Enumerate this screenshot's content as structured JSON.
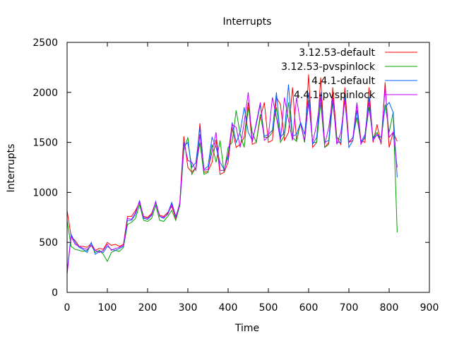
{
  "chart_data": {
    "type": "line",
    "title": "Interrupts",
    "xlabel": "Time",
    "ylabel": "Interrupts",
    "xlim": [
      0,
      900
    ],
    "ylim": [
      0,
      2500
    ],
    "xticks": [
      0,
      100,
      200,
      300,
      400,
      500,
      600,
      700,
      800,
      900
    ],
    "yticks": [
      0,
      500,
      1000,
      1500,
      2000,
      2500
    ],
    "grid": false,
    "legend_position": "top-right",
    "x": [
      0,
      10,
      20,
      30,
      40,
      50,
      60,
      70,
      80,
      90,
      100,
      110,
      120,
      130,
      140,
      150,
      160,
      170,
      180,
      190,
      200,
      210,
      220,
      230,
      240,
      250,
      260,
      270,
      280,
      290,
      300,
      310,
      320,
      330,
      340,
      350,
      360,
      370,
      380,
      390,
      400,
      410,
      420,
      430,
      440,
      450,
      460,
      470,
      480,
      490,
      500,
      510,
      520,
      530,
      540,
      550,
      560,
      570,
      580,
      590,
      600,
      610,
      620,
      630,
      640,
      650,
      660,
      670,
      680,
      690,
      700,
      710,
      720,
      730,
      740,
      750,
      760,
      770,
      780,
      790,
      800,
      810,
      820
    ],
    "series": [
      {
        "name": "3.12.53-default",
        "color": "#ff0000",
        "values": [
          820,
          560,
          520,
          460,
          460,
          450,
          490,
          420,
          440,
          430,
          500,
          470,
          480,
          460,
          480,
          760,
          760,
          820,
          900,
          760,
          750,
          790,
          900,
          770,
          760,
          800,
          860,
          740,
          900,
          1560,
          1250,
          1200,
          1250,
          1690,
          1200,
          1210,
          1300,
          1530,
          1180,
          1200,
          1300,
          1650,
          1450,
          1480,
          1550,
          1900,
          1480,
          1500,
          1750,
          1900,
          1500,
          1520,
          1950,
          1880,
          1520,
          1600,
          2050,
          1520,
          1700,
          1500,
          2180,
          1450,
          1500,
          2150,
          1450,
          1500,
          2050,
          1550,
          1480,
          2050,
          1500,
          1520,
          1880,
          1520,
          1500,
          2050,
          1500,
          1680,
          1480,
          2100,
          1450,
          1600,
          1510
        ]
      },
      {
        "name": "3.12.53-pvspinlock",
        "color": "#00a000",
        "values": [
          720,
          460,
          430,
          420,
          410,
          420,
          470,
          400,
          420,
          380,
          310,
          400,
          420,
          410,
          450,
          680,
          700,
          740,
          880,
          720,
          710,
          740,
          870,
          720,
          710,
          760,
          820,
          720,
          870,
          1420,
          1550,
          1180,
          1250,
          1500,
          1180,
          1200,
          1480,
          1300,
          1520,
          1200,
          1450,
          1500,
          1820,
          1580,
          1450,
          1850,
          1600,
          1500,
          1780,
          1550,
          1550,
          1600,
          1850,
          1500,
          1570,
          1900,
          1550,
          1510,
          1700,
          1500,
          1920,
          1500,
          1500,
          1900,
          1450,
          1480,
          1900,
          1550,
          1520,
          1950,
          1500,
          1550,
          1750,
          1500,
          1540,
          1850,
          1550,
          1600,
          1500,
          1880,
          1600,
          1800,
          600
        ]
      },
      {
        "name": "4.4.1-default",
        "color": "#0060ff",
        "values": [
          200,
          580,
          500,
          450,
          430,
          400,
          500,
          380,
          410,
          400,
          460,
          430,
          420,
          440,
          460,
          720,
          720,
          780,
          920,
          740,
          730,
          770,
          910,
          760,
          740,
          790,
          900,
          760,
          880,
          1460,
          1500,
          1250,
          1300,
          1650,
          1230,
          1260,
          1550,
          1450,
          1300,
          1230,
          1350,
          1700,
          1500,
          1600,
          1850,
          1600,
          1520,
          1680,
          1880,
          1560,
          1580,
          1620,
          2000,
          1550,
          1600,
          2080,
          1560,
          1580,
          1700,
          1580,
          2000,
          1480,
          1550,
          2000,
          1500,
          1520,
          1950,
          1500,
          1500,
          1950,
          1450,
          1520,
          1820,
          1500,
          1580,
          1950,
          1540,
          1580,
          1550,
          1850,
          1900,
          1800,
          1150
        ]
      },
      {
        "name": "4.4.1-pvspinlock",
        "color": "#c000ff",
        "values": [
          180,
          560,
          480,
          460,
          440,
          430,
          470,
          420,
          400,
          420,
          480,
          420,
          440,
          450,
          470,
          740,
          730,
          800,
          910,
          750,
          740,
          780,
          900,
          760,
          750,
          780,
          880,
          750,
          890,
          1500,
          1320,
          1300,
          1220,
          1580,
          1220,
          1230,
          1400,
          1600,
          1220,
          1220,
          1380,
          1680,
          1650,
          1450,
          1700,
          2000,
          1500,
          1700,
          1900,
          1520,
          1560,
          1950,
          1750,
          1520,
          1950,
          1720,
          1520,
          1950,
          1680,
          1520,
          1900,
          1500,
          1680,
          1950,
          1480,
          1650,
          1950,
          1480,
          1600,
          1920,
          1500,
          1550,
          1900,
          1480,
          1560,
          1900,
          1520,
          1580,
          1500,
          2050,
          1550,
          1600,
          1250
        ]
      }
    ]
  }
}
